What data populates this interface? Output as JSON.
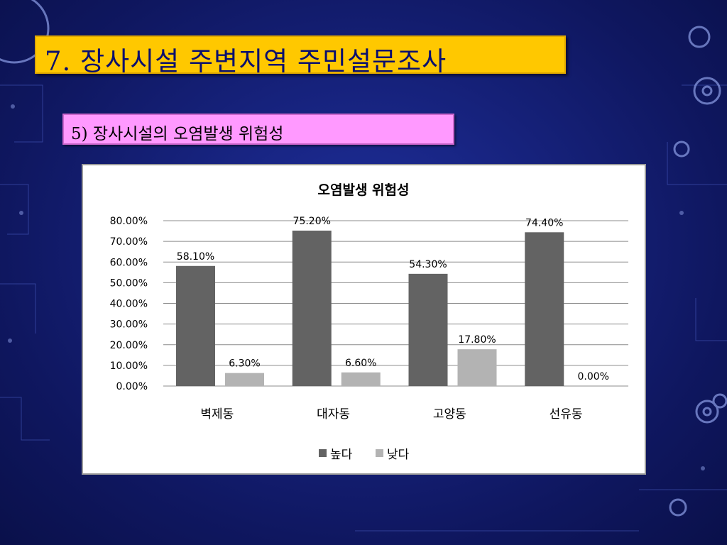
{
  "slide": {
    "title": "7. 장사시설 주변지역 주민설문조사",
    "subtitle": "5) 장사시설의 오염발생 위험성"
  },
  "colors": {
    "title_bg": "#ffc800",
    "subtitle_bg": "#ff99ff",
    "series_high": "#636363",
    "series_low": "#b3b3b3"
  },
  "chart_data": {
    "type": "bar",
    "title": "오염발생 위험성",
    "xlabel": "",
    "ylabel": "",
    "categories": [
      "벽제동",
      "대자동",
      "고양동",
      "선유동"
    ],
    "series": [
      {
        "name": "높다",
        "values": [
          58.1,
          75.2,
          54.3,
          74.4
        ],
        "labels": [
          "58.10%",
          "75.20%",
          "54.30%",
          "74.40%"
        ]
      },
      {
        "name": "낮다",
        "values": [
          6.3,
          6.6,
          17.8,
          0.0
        ],
        "labels": [
          "6.30%",
          "6.60%",
          "17.80%",
          "0.00%"
        ]
      }
    ],
    "ylim": [
      0,
      80
    ],
    "yticks": [
      "0.00%",
      "10.00%",
      "20.00%",
      "30.00%",
      "40.00%",
      "50.00%",
      "60.00%",
      "70.00%",
      "80.00%"
    ],
    "grid": true,
    "legend_position": "bottom"
  }
}
